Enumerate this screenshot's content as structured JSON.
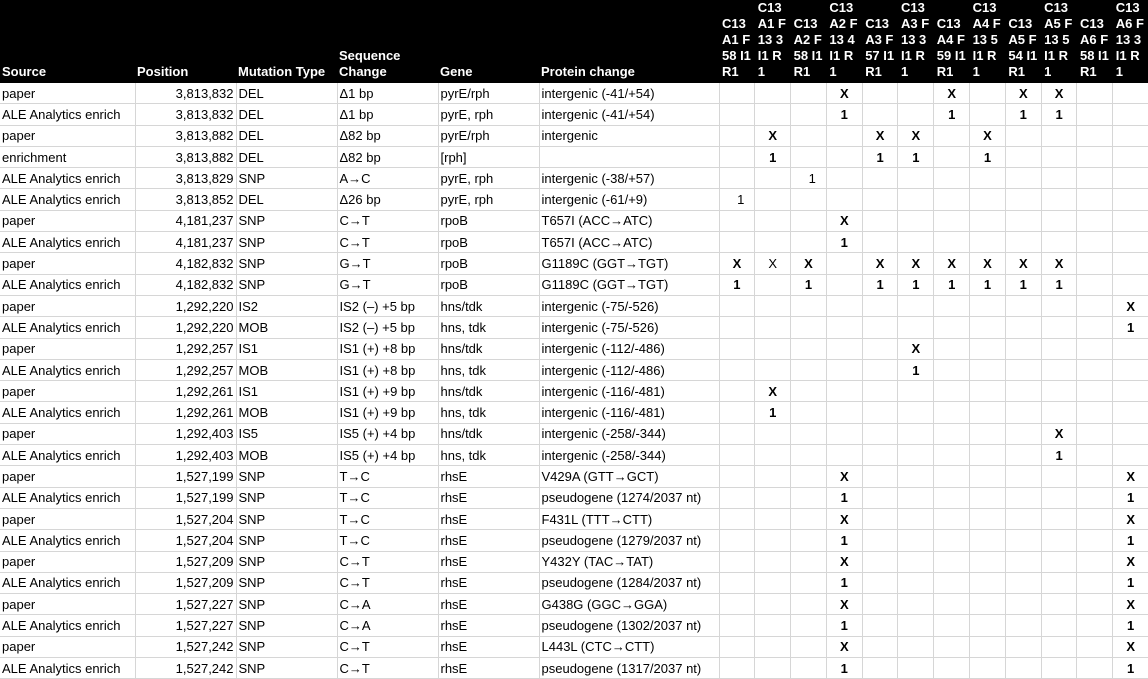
{
  "headers": {
    "source": "Source",
    "position": "Position",
    "mutation_type": "Mutation Type",
    "sequence_change": "Sequence Change",
    "gene": "Gene",
    "protein_change": "Protein change",
    "samples": [
      "C13 A1 F58 I1 R1",
      "C13 A1 F13 3 I1 R1",
      "C13 A2 F58 I1 R1",
      "C13 A2 F13 4 I1 R1",
      "C13 A3 F57 I1 R1",
      "C13 A3 F13 3 I1 R1",
      "C13 A4 F59 I1 R1",
      "C13 A4 F13 5 I1 R1",
      "C13 A5 F54 I1 R1",
      "C13 A5 F13 5 I1 R1",
      "C13 A6 F58 I1 R1",
      "C13 A6 F13 3 I1 R1"
    ]
  },
  "rows": [
    {
      "source": "paper",
      "position": "3,813,832",
      "type": "DEL",
      "seq": "Δ1 bp",
      "gene": "pyrE/rph",
      "protein": "intergenic (-41/+54)",
      "marks": [
        "",
        "",
        "",
        "X",
        "",
        "",
        "X",
        "",
        "X",
        "X",
        "",
        ""
      ]
    },
    {
      "source": "ALE Analytics enrich",
      "position": "3,813,832",
      "type": "DEL",
      "seq": "Δ1 bp",
      "gene": "pyrE, rph",
      "protein": "intergenic (-41/+54)",
      "marks": [
        "",
        "",
        "",
        "1",
        "",
        "",
        "1",
        "",
        "1",
        "1",
        "",
        ""
      ]
    },
    {
      "source": "paper",
      "position": "3,813,882",
      "type": "DEL",
      "seq": "Δ82 bp",
      "gene": "pyrE/rph",
      "protein": "intergenic",
      "marks": [
        "",
        "X",
        "",
        "",
        "X",
        "X",
        "",
        "X",
        "",
        "",
        "",
        ""
      ]
    },
    {
      "source": "enrichment",
      "position": "3,813,882",
      "type": "DEL",
      "seq": "Δ82 bp",
      "gene": "[rph]",
      "protein": "",
      "marks": [
        "",
        "1",
        "",
        "",
        "1",
        "1",
        "",
        "1",
        "",
        "",
        "",
        ""
      ]
    },
    {
      "source": "ALE Analytics enrich",
      "position": "3,813,829",
      "type": "SNP",
      "seq": "A→C",
      "gene": "pyrE, rph",
      "protein": "intergenic (-38/+57)",
      "marks": [
        "",
        "",
        "1",
        "",
        "",
        "",
        "",
        "",
        "",
        "",
        "",
        ""
      ]
    },
    {
      "source": "ALE Analytics enrich",
      "position": "3,813,852",
      "type": "DEL",
      "seq": "Δ26 bp",
      "gene": "pyrE, rph",
      "protein": "intergenic (-61/+9)",
      "marks": [
        "1",
        "",
        "",
        "",
        "",
        "",
        "",
        "",
        "",
        "",
        "",
        ""
      ]
    },
    {
      "source": "paper",
      "position": "4,181,237",
      "type": "SNP",
      "seq": "C→T",
      "gene": "rpoB",
      "protein": "T657I (ACC→ATC)",
      "marks": [
        "",
        "",
        "",
        "X",
        "",
        "",
        "",
        "",
        "",
        "",
        "",
        ""
      ]
    },
    {
      "source": "ALE Analytics enrich",
      "position": "4,181,237",
      "type": "SNP",
      "seq": "C→T",
      "gene": "rpoB",
      "protein": "T657I (ACC→ATC)",
      "marks": [
        "",
        "",
        "",
        "1",
        "",
        "",
        "",
        "",
        "",
        "",
        "",
        ""
      ]
    },
    {
      "source": "paper",
      "position": "4,182,832",
      "type": "SNP",
      "seq": "G→T",
      "gene": "rpoB",
      "protein": "G1189C (GGT→TGT)",
      "marks": [
        "X",
        "X",
        "X",
        "",
        "X",
        "X",
        "X",
        "X",
        "X",
        "X",
        "",
        ""
      ]
    },
    {
      "source": "ALE Analytics enrich",
      "position": "4,182,832",
      "type": "SNP",
      "seq": "G→T",
      "gene": "rpoB",
      "protein": "G1189C (GGT→TGT)",
      "marks": [
        "1",
        "",
        "1",
        "",
        "1",
        "1",
        "1",
        "1",
        "1",
        "1",
        "",
        ""
      ]
    },
    {
      "source": "paper",
      "position": "1,292,220",
      "type": "IS2",
      "seq": "IS2 (–) +5 bp",
      "gene": "hns/tdk",
      "protein": "intergenic (-75/-526)",
      "marks": [
        "",
        "",
        "",
        "",
        "",
        "",
        "",
        "",
        "",
        "",
        "",
        "X"
      ]
    },
    {
      "source": "ALE Analytics enrich",
      "position": "1,292,220",
      "type": "MOB",
      "seq": "IS2 (–) +5 bp",
      "gene": "hns, tdk",
      "protein": "intergenic (-75/-526)",
      "marks": [
        "",
        "",
        "",
        "",
        "",
        "",
        "",
        "",
        "",
        "",
        "",
        "1"
      ]
    },
    {
      "source": "paper",
      "position": "1,292,257",
      "type": "IS1",
      "seq": "IS1 (+) +8 bp",
      "gene": "hns/tdk",
      "protein": "intergenic (-112/-486)",
      "marks": [
        "",
        "",
        "",
        "",
        "",
        "X",
        "",
        "",
        "",
        "",
        "",
        ""
      ]
    },
    {
      "source": "ALE Analytics enrich",
      "position": "1,292,257",
      "type": "MOB",
      "seq": "IS1 (+) +8 bp",
      "gene": "hns, tdk",
      "protein": "intergenic (-112/-486)",
      "marks": [
        "",
        "",
        "",
        "",
        "",
        "1",
        "",
        "",
        "",
        "",
        "",
        ""
      ]
    },
    {
      "source": "paper",
      "position": "1,292,261",
      "type": "IS1",
      "seq": "IS1 (+) +9 bp",
      "gene": "hns/tdk",
      "protein": "intergenic (-116/-481)",
      "marks": [
        "",
        "X",
        "",
        "",
        "",
        "",
        "",
        "",
        "",
        "",
        "",
        ""
      ]
    },
    {
      "source": "ALE Analytics enrich",
      "position": "1,292,261",
      "type": "MOB",
      "seq": "IS1 (+) +9 bp",
      "gene": "hns, tdk",
      "protein": "intergenic (-116/-481)",
      "marks": [
        "",
        "1",
        "",
        "",
        "",
        "",
        "",
        "",
        "",
        "",
        "",
        ""
      ]
    },
    {
      "source": "paper",
      "position": "1,292,403",
      "type": "IS5",
      "seq": "IS5 (+) +4 bp",
      "gene": "hns/tdk",
      "protein": "intergenic (-258/-344)",
      "marks": [
        "",
        "",
        "",
        "",
        "",
        "",
        "",
        "",
        "",
        "X",
        "",
        ""
      ]
    },
    {
      "source": "ALE Analytics enrich",
      "position": "1,292,403",
      "type": "MOB",
      "seq": "IS5 (+) +4 bp",
      "gene": "hns, tdk",
      "protein": "intergenic (-258/-344)",
      "marks": [
        "",
        "",
        "",
        "",
        "",
        "",
        "",
        "",
        "",
        "1",
        "",
        ""
      ]
    },
    {
      "source": "paper",
      "position": "1,527,199",
      "type": "SNP",
      "seq": "T→C",
      "gene": "rhsE",
      "protein": "V429A (GTT→GCT)",
      "marks": [
        "",
        "",
        "",
        "X",
        "",
        "",
        "",
        "",
        "",
        "",
        "",
        "X"
      ]
    },
    {
      "source": "ALE Analytics enrich",
      "position": "1,527,199",
      "type": "SNP",
      "seq": "T→C",
      "gene": "rhsE",
      "protein": "pseudogene (1274/2037 nt)",
      "marks": [
        "",
        "",
        "",
        "1",
        "",
        "",
        "",
        "",
        "",
        "",
        "",
        "1"
      ]
    },
    {
      "source": "paper",
      "position": "1,527,204",
      "type": "SNP",
      "seq": "T→C",
      "gene": "rhsE",
      "protein": "F431L (TTT→CTT)",
      "marks": [
        "",
        "",
        "",
        "X",
        "",
        "",
        "",
        "",
        "",
        "",
        "",
        "X"
      ]
    },
    {
      "source": "ALE Analytics enrich",
      "position": "1,527,204",
      "type": "SNP",
      "seq": "T→C",
      "gene": "rhsE",
      "protein": "pseudogene (1279/2037 nt)",
      "marks": [
        "",
        "",
        "",
        "1",
        "",
        "",
        "",
        "",
        "",
        "",
        "",
        "1"
      ]
    },
    {
      "source": "paper",
      "position": "1,527,209",
      "type": "SNP",
      "seq": "C→T",
      "gene": "rhsE",
      "protein": "Y432Y (TAC→TAT)",
      "marks": [
        "",
        "",
        "",
        "X",
        "",
        "",
        "",
        "",
        "",
        "",
        "",
        "X"
      ]
    },
    {
      "source": "ALE Analytics enrich",
      "position": "1,527,209",
      "type": "SNP",
      "seq": "C→T",
      "gene": "rhsE",
      "protein": "pseudogene (1284/2037 nt)",
      "marks": [
        "",
        "",
        "",
        "1",
        "",
        "",
        "",
        "",
        "",
        "",
        "",
        "1"
      ]
    },
    {
      "source": "paper",
      "position": "1,527,227",
      "type": "SNP",
      "seq": "C→A",
      "gene": "rhsE",
      "protein": "G438G (GGC→GGA)",
      "marks": [
        "",
        "",
        "",
        "X",
        "",
        "",
        "",
        "",
        "",
        "",
        "",
        "X"
      ]
    },
    {
      "source": "ALE Analytics enrich",
      "position": "1,527,227",
      "type": "SNP",
      "seq": "C→A",
      "gene": "rhsE",
      "protein": "pseudogene (1302/2037 nt)",
      "marks": [
        "",
        "",
        "",
        "1",
        "",
        "",
        "",
        "",
        "",
        "",
        "",
        "1"
      ]
    },
    {
      "source": "paper",
      "position": "1,527,242",
      "type": "SNP",
      "seq": "C→T",
      "gene": "rhsE",
      "protein": "L443L (CTC→CTT)",
      "marks": [
        "",
        "",
        "",
        "X",
        "",
        "",
        "",
        "",
        "",
        "",
        "",
        "X"
      ]
    },
    {
      "source": "ALE Analytics enrich",
      "position": "1,527,242",
      "type": "SNP",
      "seq": "C→T",
      "gene": "rhsE",
      "protein": "pseudogene (1317/2037 nt)",
      "marks": [
        "",
        "",
        "",
        "1",
        "",
        "",
        "",
        "",
        "",
        "",
        "",
        "1"
      ]
    }
  ]
}
